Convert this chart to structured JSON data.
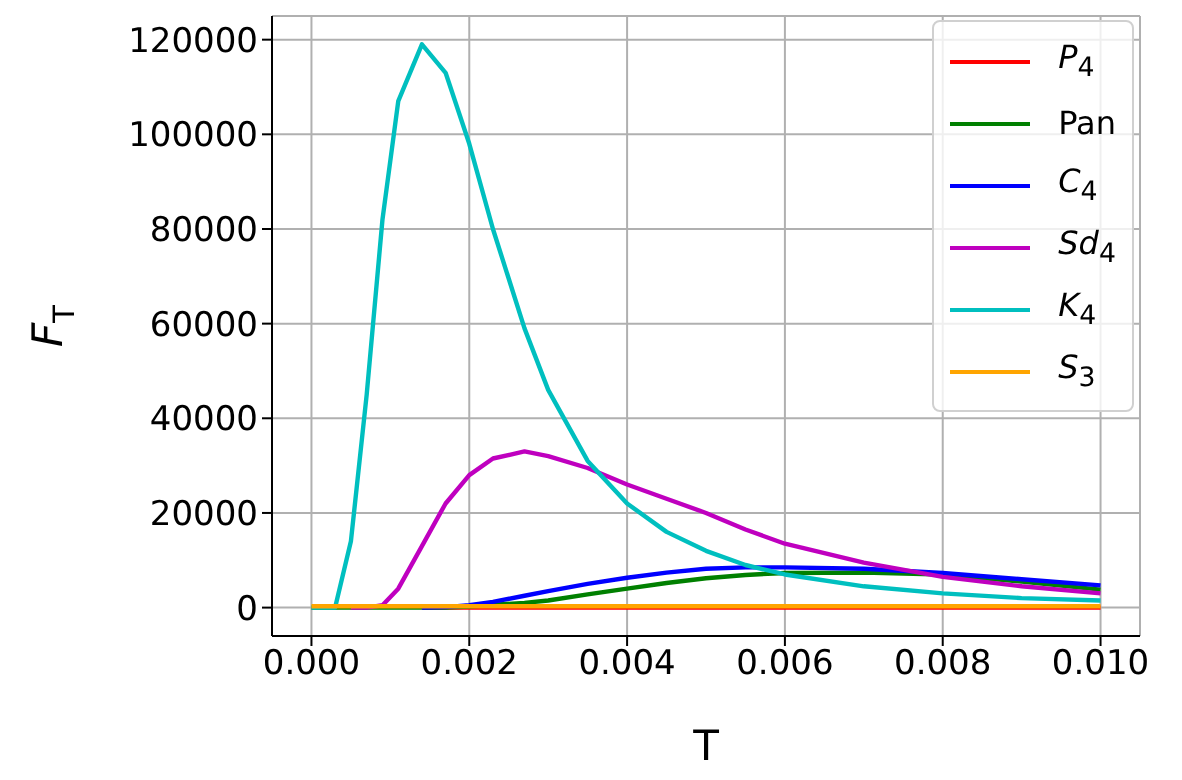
{
  "chart_data": {
    "type": "line",
    "xlabel": "T",
    "ylabel": "F$_{T}$",
    "x": [
      0,
      0.0003,
      0.0005,
      0.0007,
      0.0009,
      0.0011,
      0.0014,
      0.0017,
      0.002,
      0.0023,
      0.0027,
      0.003,
      0.0035,
      0.004,
      0.0045,
      0.005,
      0.0055,
      0.006,
      0.007,
      0.008,
      0.009,
      0.01
    ],
    "series": [
      {
        "name": "P$_{4}$",
        "color": "#ff0000",
        "values": [
          null,
          null,
          null,
          null,
          null,
          null,
          0,
          0,
          0,
          0,
          0,
          0,
          0,
          0,
          0,
          0,
          0,
          0,
          0,
          0,
          0,
          0
        ]
      },
      {
        "name": "Pan",
        "color": "#008000",
        "values": [
          0,
          0,
          0,
          0,
          0,
          0,
          0,
          0,
          200,
          600,
          1000,
          1500,
          2800,
          4000,
          5200,
          6200,
          6900,
          7300,
          7400,
          7000,
          5500,
          3800
        ]
      },
      {
        "name": "C$_{4}$",
        "color": "#0000ff",
        "values": [
          null,
          null,
          null,
          null,
          null,
          null,
          0,
          100,
          500,
          1200,
          2500,
          3500,
          5000,
          6300,
          7400,
          8200,
          8500,
          8500,
          8200,
          7300,
          6000,
          4700
        ]
      },
      {
        "name": "Sd$_{4}$",
        "color": "#bf00bf",
        "values": [
          null,
          null,
          0,
          0,
          500,
          4000,
          13000,
          22000,
          28000,
          31500,
          33000,
          32000,
          29500,
          26000,
          23000,
          20000,
          16500,
          13500,
          9500,
          6500,
          4500,
          3000
        ]
      },
      {
        "name": "K$_{4}$",
        "color": "#00bfbf",
        "values": [
          0,
          0,
          14000,
          45000,
          82000,
          107000,
          119000,
          113000,
          98000,
          80000,
          59000,
          46000,
          31000,
          22000,
          16000,
          12000,
          9000,
          7000,
          4500,
          3000,
          2000,
          1500
        ]
      },
      {
        "name": "S$_{3}$",
        "color": "#ffa500",
        "values": [
          300,
          300,
          300,
          300,
          300,
          300,
          300,
          300,
          300,
          300,
          300,
          300,
          300,
          300,
          300,
          300,
          300,
          300,
          300,
          300,
          300,
          300
        ]
      }
    ],
    "xlim": [
      -0.0005,
      0.0105
    ],
    "xticks": [
      {
        "value": 0,
        "label": "0.000"
      },
      {
        "value": 0.002,
        "label": "0.002"
      },
      {
        "value": 0.004,
        "label": "0.004"
      },
      {
        "value": 0.006,
        "label": "0.006"
      },
      {
        "value": 0.008,
        "label": "0.008"
      },
      {
        "value": 0.01,
        "label": "0.010"
      }
    ],
    "ylim": [
      -6000,
      125000
    ],
    "yticks": [
      0,
      20000,
      40000,
      60000,
      80000,
      100000,
      120000
    ],
    "grid": true,
    "legend": "top right"
  }
}
